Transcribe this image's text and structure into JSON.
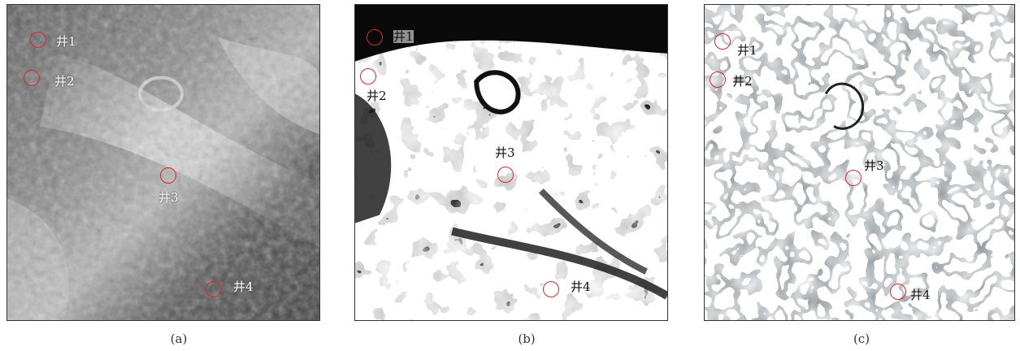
{
  "panels": [
    {
      "caption": "(a)",
      "style": "grayscale seismic attribute"
    },
    {
      "caption": "(b)",
      "style": "black and white binarized"
    },
    {
      "caption": "(c)",
      "style": "thin dark curvilinear features on white"
    }
  ],
  "wells": [
    "井1",
    "井2",
    "井3",
    "井4"
  ],
  "colors": {
    "circle": "#d42a2a",
    "frame": "#333333"
  }
}
